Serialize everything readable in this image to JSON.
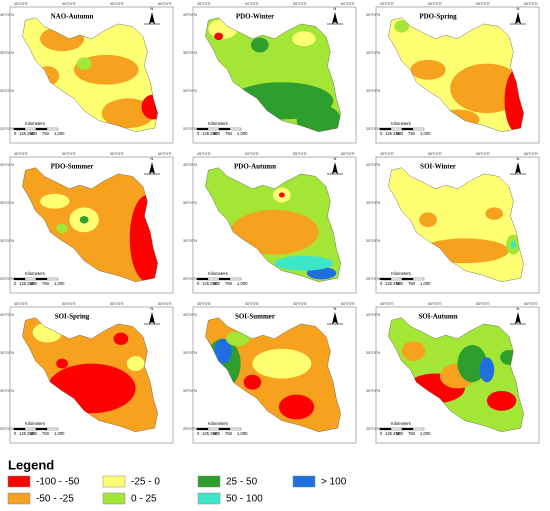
{
  "panels": [
    {
      "title": "NAO-Autumn"
    },
    {
      "title": "PDO-Winter"
    },
    {
      "title": "PDO-Spring"
    },
    {
      "title": "PDO-Summer"
    },
    {
      "title": "PDO-Autumn"
    },
    {
      "title": "SOI-Winter"
    },
    {
      "title": "SOI-Spring"
    },
    {
      "title": "SOI-Summer"
    },
    {
      "title": "SOI-Autumn"
    }
  ],
  "axis_labels": {
    "top": [
      "45°0'0\"E",
      "50°0'0\"E",
      "55°0'0\"E",
      "60°0'0\"E"
    ],
    "left": [
      "40°0'0\"N",
      "35°0'0\"N",
      "30°0'0\"N",
      "25°0'0\"N"
    ]
  },
  "scale_bar": {
    "title": "Kilometers",
    "labels": [
      "0",
      "125 250",
      "500",
      "750",
      "1,000"
    ]
  },
  "north": "N",
  "legend": {
    "title": "Legend",
    "items": [
      {
        "label": "-100 - -50",
        "color": "#ff0000"
      },
      {
        "label": "-50 - -25",
        "color": "#f7a21e"
      },
      {
        "label": "-25 - 0",
        "color": "#ffff73"
      },
      {
        "label": "0 - 25",
        "color": "#a3e635"
      },
      {
        "label": "25 - 50",
        "color": "#2e9e2e"
      },
      {
        "label": "50 - 100",
        "color": "#3ee6c8"
      },
      {
        "label": "> 100",
        "color": "#1f6fe0"
      }
    ]
  }
}
